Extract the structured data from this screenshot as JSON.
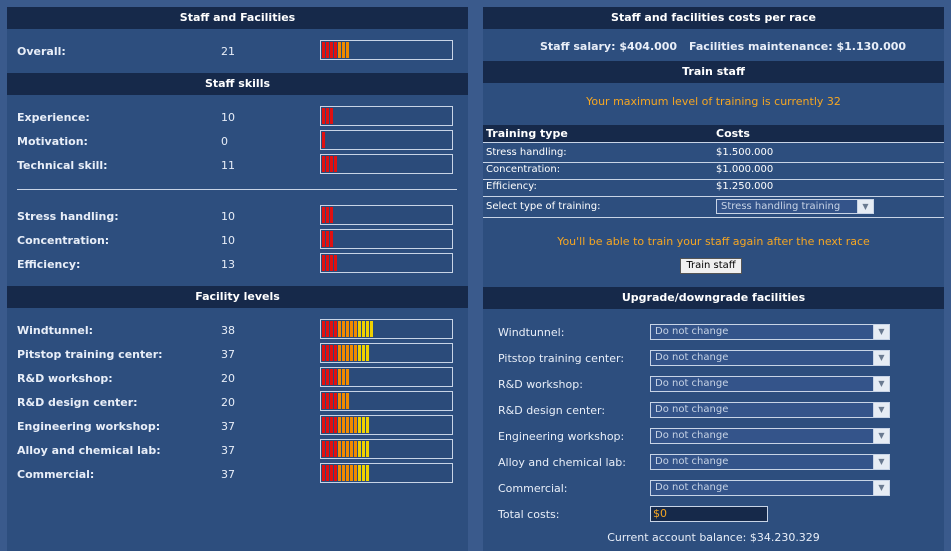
{
  "left": {
    "staff_header": "Staff and Facilities",
    "overall": {
      "label": "Overall:",
      "value": "21",
      "level": 21
    },
    "skills_header": "Staff skills",
    "skills": [
      {
        "label": "Experience:",
        "value": "10",
        "level": 10
      },
      {
        "label": "Motivation:",
        "value": "0",
        "level": 0
      },
      {
        "label": "Technical skill:",
        "value": "11",
        "level": 11
      }
    ],
    "skills2": [
      {
        "label": "Stress handling:",
        "value": "10",
        "level": 10
      },
      {
        "label": "Concentration:",
        "value": "10",
        "level": 10
      },
      {
        "label": "Efficiency:",
        "value": "13",
        "level": 13
      }
    ],
    "facilities_header": "Facility levels",
    "facilities": [
      {
        "label": "Windtunnel:",
        "value": "38",
        "level": 38
      },
      {
        "label": "Pitstop training center:",
        "value": "37",
        "level": 37
      },
      {
        "label": "R&D workshop:",
        "value": "20",
        "level": 20
      },
      {
        "label": "R&D design center:",
        "value": "20",
        "level": 20
      },
      {
        "label": "Engineering workshop:",
        "value": "37",
        "level": 37
      },
      {
        "label": "Alloy and chemical lab:",
        "value": "37",
        "level": 37
      },
      {
        "label": "Commercial:",
        "value": "37",
        "level": 37
      }
    ]
  },
  "right": {
    "costs_header": "Staff and facilities costs per race",
    "salary": "Staff salary: $404.000",
    "maintenance": "Facilities maintenance: $1.130.000",
    "train_header": "Train staff",
    "max_level_msg": "Your maximum level of training is currently 32",
    "table_headers": [
      "Training type",
      "Costs"
    ],
    "training_rows": [
      {
        "type": "Stress handling:",
        "cost": "$1.500.000"
      },
      {
        "type": "Concentration:",
        "cost": "$1.000.000"
      },
      {
        "type": "Efficiency:",
        "cost": "$1.250.000"
      }
    ],
    "select_label": "Select type of training:",
    "select_value": "Stress handling training",
    "next_race_msg": "You'll be able to train your staff again after the next race",
    "train_button": "Train staff",
    "upgrade_header": "Upgrade/downgrade facilities",
    "upgrades": [
      {
        "label": "Windtunnel:",
        "value": "Do not change"
      },
      {
        "label": "Pitstop training center:",
        "value": "Do not change"
      },
      {
        "label": "R&D workshop:",
        "value": "Do not change"
      },
      {
        "label": "R&D design center:",
        "value": "Do not change"
      },
      {
        "label": "Engineering workshop:",
        "value": "Do not change"
      },
      {
        "label": "Alloy and chemical lab:",
        "value": "Do not change"
      },
      {
        "label": "Commercial:",
        "value": "Do not change"
      }
    ],
    "total_label": "Total costs:",
    "total_value": "$0",
    "balance": "Current account balance: $34.230.329"
  },
  "colors": {
    "bar_red": "#e01010",
    "bar_orange": "#f08a00",
    "bar_yellow": "#f0d000",
    "accent_orange": "#f5a623"
  }
}
